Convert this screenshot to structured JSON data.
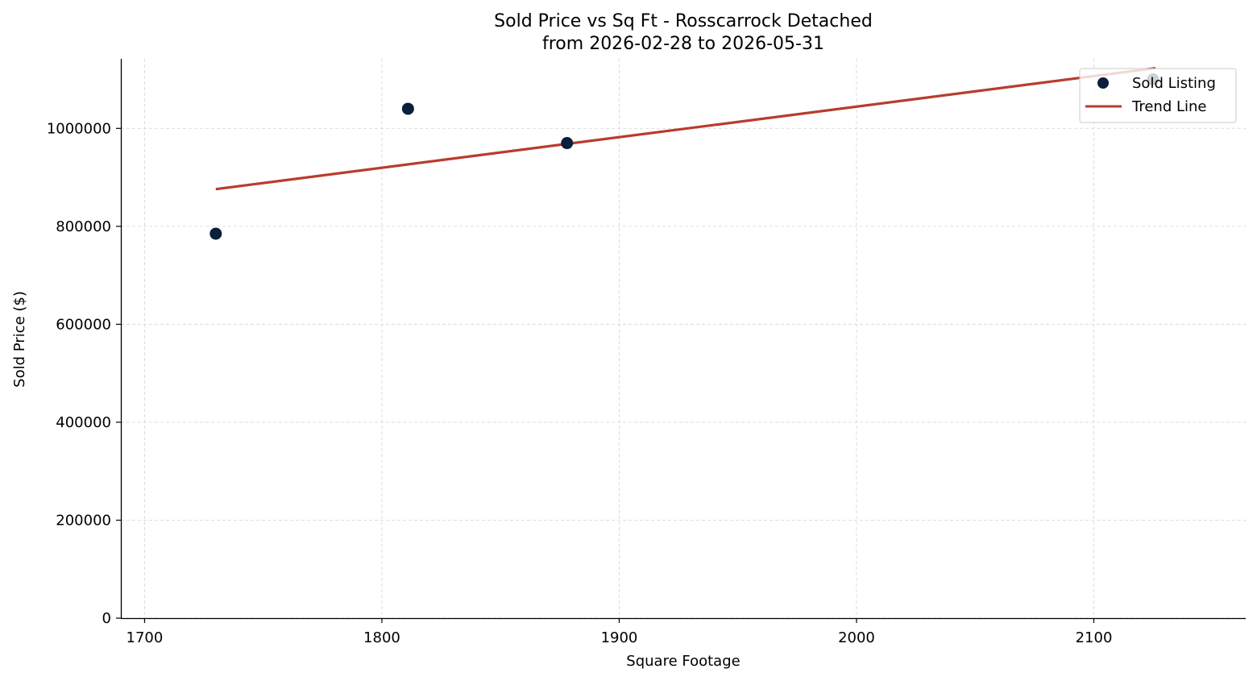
{
  "chart_data": {
    "type": "scatter",
    "title_line1": "Sold Price vs Sq Ft - Rosscarrock Detached",
    "title_line2": "from 2026-02-28 to 2026-05-31",
    "xlabel": "Square Footage",
    "ylabel": "Sold Price ($)",
    "xlim": [
      1690,
      2164
    ],
    "ylim": [
      0,
      1142000
    ],
    "xticks": [
      1700,
      1800,
      1900,
      2000,
      2100
    ],
    "yticks": [
      0,
      200000,
      400000,
      600000,
      800000,
      1000000
    ],
    "grid": true,
    "legend_position": "top-right",
    "series": [
      {
        "name": "Sold Listing",
        "kind": "scatter",
        "color": "#0b1f3a",
        "points": [
          {
            "x": 1730,
            "y": 785000
          },
          {
            "x": 1811,
            "y": 1040000
          },
          {
            "x": 1878,
            "y": 970000
          },
          {
            "x": 2125,
            "y": 1100000
          }
        ]
      },
      {
        "name": "Trend Line",
        "kind": "line",
        "color": "#b83c2c",
        "points": [
          {
            "x": 1730,
            "y": 876000
          },
          {
            "x": 2126,
            "y": 1123000
          }
        ]
      }
    ]
  }
}
